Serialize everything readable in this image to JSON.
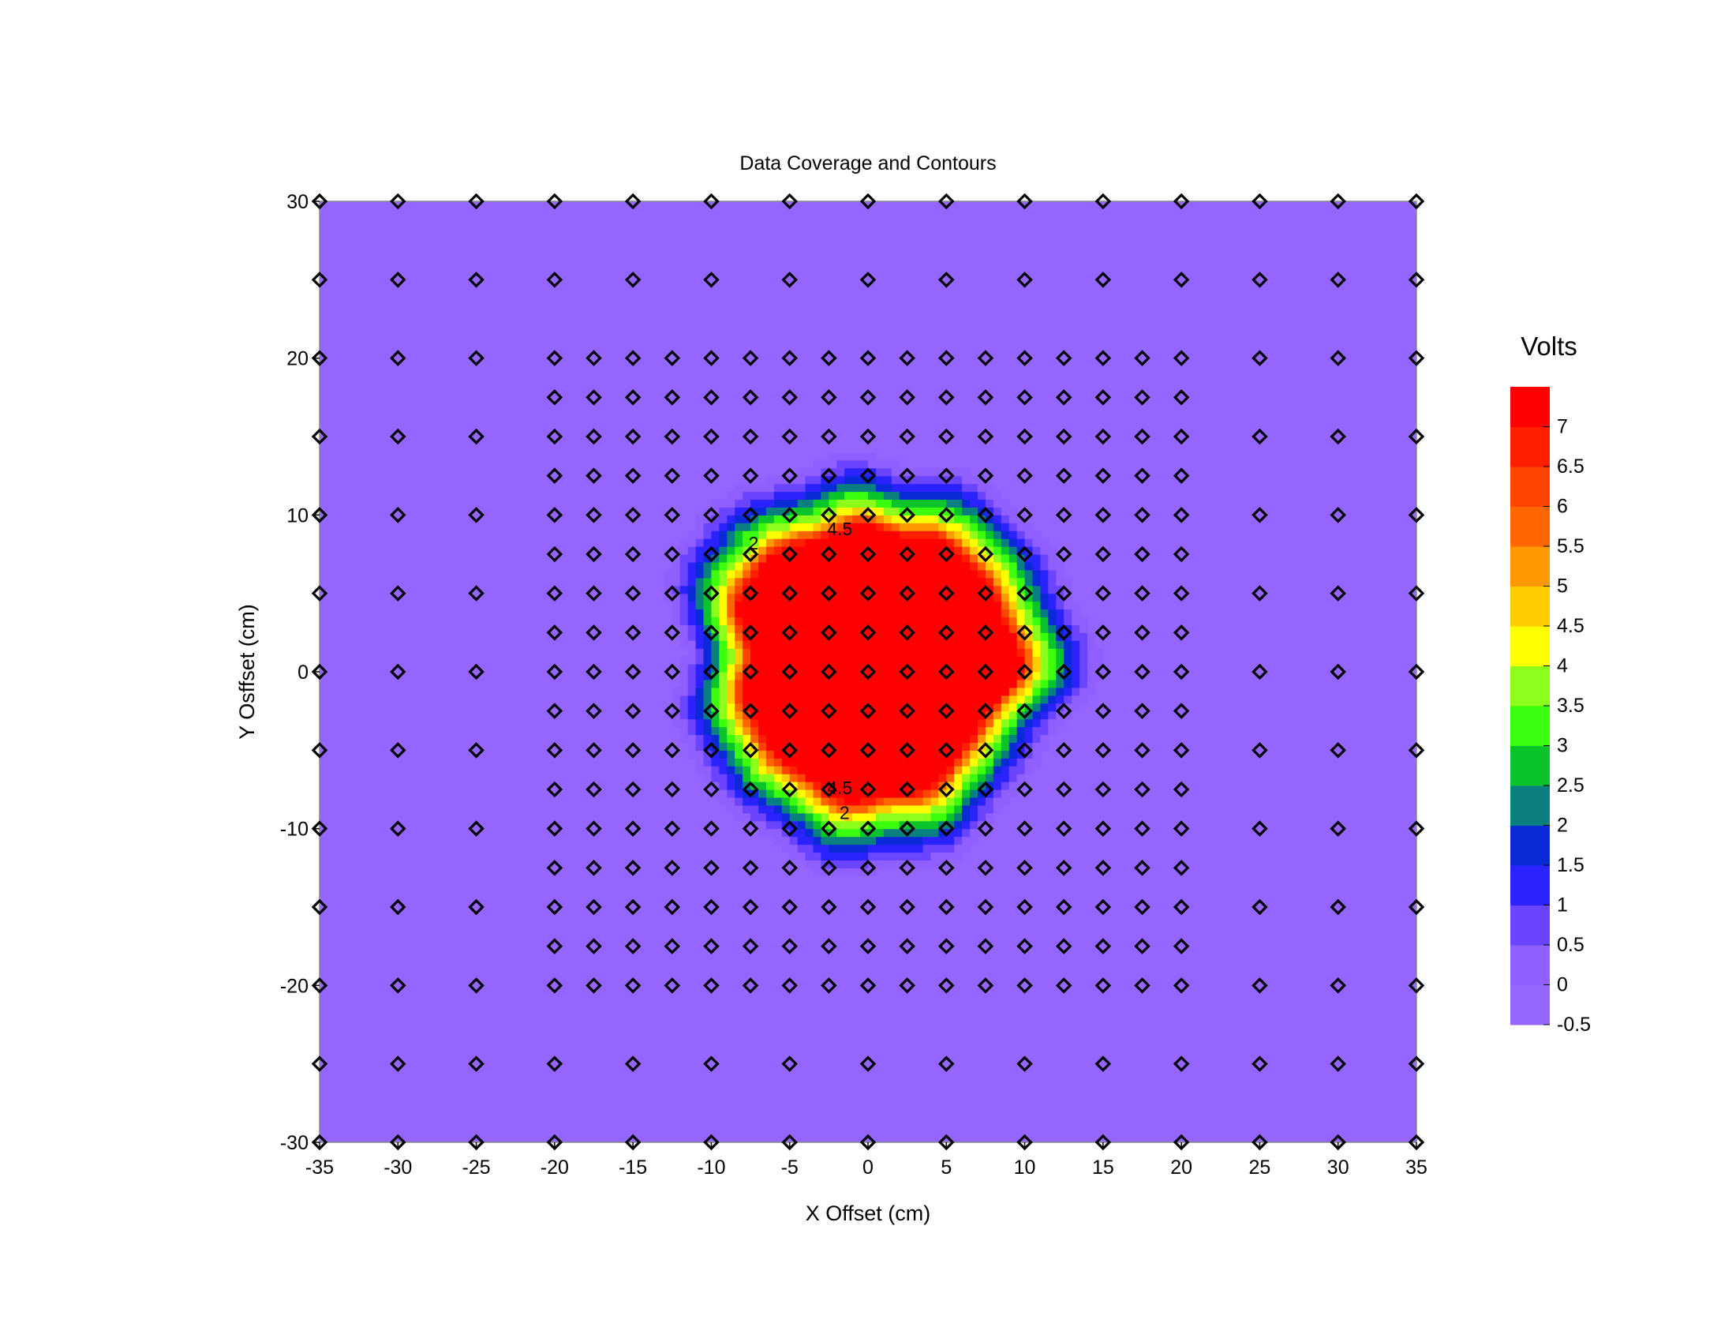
{
  "chart_data": {
    "type": "heatmap",
    "title": "Data Coverage and Contours",
    "xlabel": "X Offset (cm)",
    "ylabel": "Y Osffset (cm)",
    "xlim": [
      -35,
      35
    ],
    "ylim": [
      -30,
      30
    ],
    "xticks": [
      -35,
      -30,
      -25,
      -20,
      -15,
      -10,
      -5,
      0,
      5,
      10,
      15,
      20,
      25,
      30,
      35
    ],
    "yticks": [
      -30,
      -20,
      -10,
      0,
      10,
      20,
      30
    ],
    "legend": {
      "title": "Volts",
      "placement": "right",
      "levels": [
        -0.5,
        0,
        0.5,
        1,
        1.5,
        2,
        2.5,
        3,
        3.5,
        4,
        4.5,
        5,
        5.5,
        6,
        6.5,
        7,
        7.5
      ],
      "labels": [
        "7",
        "6.5",
        "6",
        "5.5",
        "5",
        "4.5",
        "4",
        "3.5",
        "3",
        "2.5",
        "2",
        "1.5",
        "1",
        "0.5",
        "0",
        "-0.5"
      ],
      "colors": [
        "#9466ff",
        "#8f5fff",
        "#6a44ff",
        "#2a22ff",
        "#0a2ad8",
        "#0a7f80",
        "#0bc42b",
        "#3bff0c",
        "#8cff1a",
        "#ffff00",
        "#ffcc00",
        "#ff9900",
        "#ff6600",
        "#ff4400",
        "#ff1e00",
        "#ff0000"
      ]
    },
    "field": {
      "description_type": "radial",
      "center": [
        0.3,
        0.8
      ],
      "plateau_value": 7.2,
      "background_value": -0.4
    },
    "contour_labels": [
      {
        "text": "4.5",
        "x": -1.8,
        "y": 8.7
      },
      {
        "text": "4.5",
        "x": -1.8,
        "y": -7.8
      },
      {
        "text": "2",
        "x": -1.5,
        "y": -9.4
      },
      {
        "text": "2",
        "x": -7.3,
        "y": 7.8
      }
    ],
    "coverage_points": {
      "coarse_x": [
        -35,
        -30,
        -25,
        -20,
        -15,
        -10,
        -5,
        0,
        5,
        10,
        15,
        20,
        25,
        30,
        35
      ],
      "coarse_y": [
        -30,
        -25,
        -20,
        -15,
        -10,
        -5,
        0,
        5,
        10,
        15,
        20,
        25,
        30
      ],
      "fine_x_range": [
        -20,
        20
      ],
      "fine_y_range": [
        -20,
        20
      ],
      "fine_step": 2.5
    },
    "grid": false
  }
}
